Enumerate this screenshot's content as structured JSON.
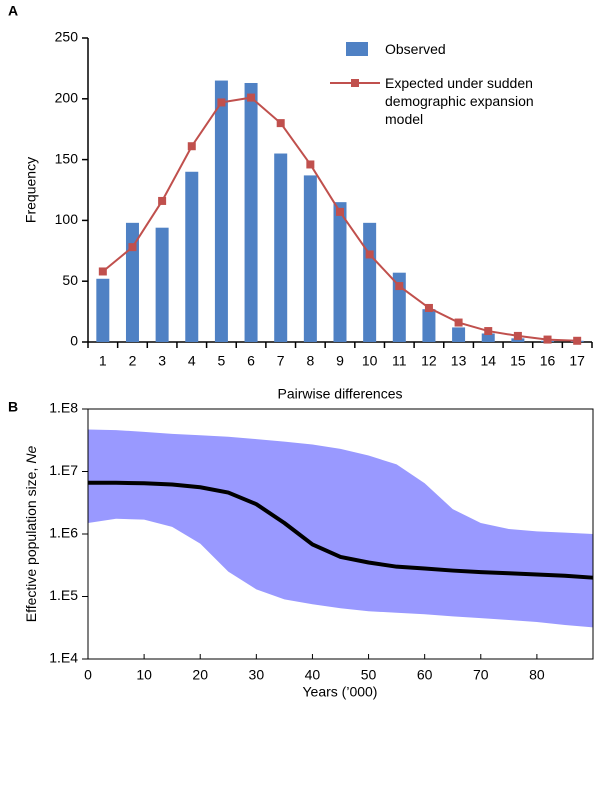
{
  "chart_data": [
    {
      "type": "bar_line",
      "panel": "A",
      "xlabel": "Pairwise differences",
      "ylabel": "Frequency",
      "categories": [
        "1",
        "2",
        "3",
        "4",
        "5",
        "6",
        "7",
        "8",
        "9",
        "10",
        "11",
        "12",
        "13",
        "14",
        "15",
        "16",
        "17"
      ],
      "series": [
        {
          "name": "Observed",
          "color": "#4f81c4",
          "kind": "bar",
          "values": [
            52,
            98,
            94,
            140,
            215,
            213,
            155,
            137,
            115,
            98,
            57,
            27,
            12,
            7,
            3,
            1,
            1
          ]
        },
        {
          "name": "Expected under sudden demographic expansion model",
          "color": "#c0504d",
          "kind": "line",
          "values": [
            58,
            78,
            116,
            161,
            197,
            201,
            180,
            146,
            107,
            72,
            46,
            28,
            16,
            9,
            5,
            2,
            1
          ]
        }
      ],
      "ylim": [
        0,
        250
      ],
      "yticks": [
        0,
        50,
        100,
        150,
        200,
        250
      ]
    },
    {
      "type": "line",
      "panel": "B",
      "xlabel": "Years (’000)",
      "ylabel": [
        "Effective population size,",
        "Ne"
      ],
      "log_y": true,
      "x": [
        0,
        5,
        10,
        15,
        20,
        25,
        30,
        35,
        40,
        45,
        50,
        55,
        60,
        65,
        70,
        75,
        80,
        85,
        90
      ],
      "series": [
        {
          "color": "#000000",
          "values": [
            6600000,
            6600000,
            6500000,
            6200000,
            5600000,
            4600000,
            3000000,
            1500000,
            680000,
            430000,
            350000,
            300000,
            280000,
            260000,
            245000,
            235000,
            225000,
            215000,
            200000
          ]
        }
      ],
      "band": {
        "color": "#9999ff",
        "upper": [
          47000000,
          46000000,
          43000000,
          40000000,
          38000000,
          36000000,
          33000000,
          30000000,
          27000000,
          23000000,
          18000000,
          13000000,
          6500000,
          2500000,
          1500000,
          1200000,
          1100000,
          1050000,
          1000000
        ],
        "lower": [
          1500000,
          1750000,
          1700000,
          1300000,
          700000,
          250000,
          130000,
          90000,
          75000,
          65000,
          58000,
          55000,
          52000,
          48000,
          45000,
          42000,
          39000,
          35000,
          32000
        ]
      },
      "xlim": [
        0,
        90
      ],
      "xticks": [
        0,
        10,
        20,
        30,
        40,
        50,
        60,
        70,
        80
      ],
      "ylim": [
        10000,
        100000000
      ],
      "yticks": [
        {
          "value": 10000,
          "label": "1.E4"
        },
        {
          "value": 100000,
          "label": "1.E5"
        },
        {
          "value": 1000000,
          "label": "1.E6"
        },
        {
          "value": 10000000,
          "label": "1.E7"
        },
        {
          "value": 100000000,
          "label": "1.E8"
        }
      ]
    }
  ]
}
